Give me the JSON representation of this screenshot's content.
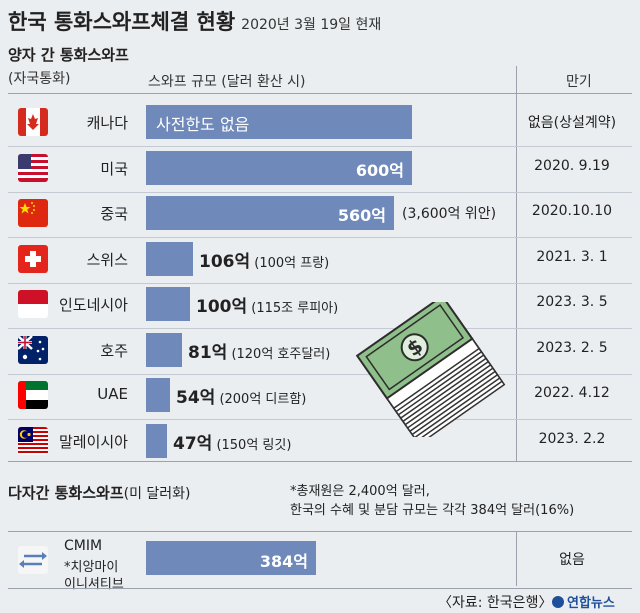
{
  "header": {
    "title": "한국 통화스와프체결 현황",
    "date": "2020년 3월 19일 현재"
  },
  "bilateral": {
    "section_title": "양자 간 통화스와프",
    "col_currency": "(자국통화)",
    "col_size": "스와프 규모 (달러 환산 시)",
    "col_expiry": "만기"
  },
  "multilateral": {
    "section_title": "다자간 통화스와프",
    "section_paren": "(미 달러화)",
    "note_line1": "*총재원은 2,400억 달러,",
    "note_line2": "한국의 수혜 및 분담 규모는 각각 384억 달러(16%)",
    "name": "CMIM",
    "sub1": "*치앙마이",
    "sub2": "이니셔티브",
    "value_label": "384억",
    "expiry": "없음"
  },
  "source": "〈자료: 한국은행〉",
  "brand": "연합뉴스",
  "chart_data": {
    "type": "bar",
    "title": "한국 통화스와프체결 현황",
    "unit": "억 달러",
    "categories": [
      "캐나다",
      "미국",
      "중국",
      "스위스",
      "인도네시아",
      "호주",
      "UAE",
      "말레이시아"
    ],
    "values": [
      null,
      600,
      560,
      106,
      100,
      81,
      54,
      47
    ],
    "value_labels": [
      "사전한도 없음",
      "600억",
      "560억",
      "106억",
      "100억",
      "81억",
      "54억",
      "47억"
    ],
    "local_currency": [
      "",
      "",
      "(3,600억 위안)",
      "(100억 프랑)",
      "(115조 루피아)",
      "(120억 호주달러)",
      "(200억 디르함)",
      "(150억 링깃)"
    ],
    "expiry": [
      "없음(상설계약)",
      "2020. 9.19",
      "2020.10.10",
      "2021. 3. 1",
      "2023. 3. 5",
      "2023. 2. 5",
      "2022. 4.12",
      "2023. 2.2"
    ],
    "flags": [
      "canada",
      "usa",
      "china",
      "switzerland",
      "indonesia",
      "australia",
      "uae",
      "malaysia"
    ],
    "extra": {
      "category": "CMIM",
      "value": 384,
      "value_label": "384억",
      "expiry": "없음"
    },
    "colors": {
      "bar": "#6f89ba",
      "background": "#ebeef1"
    }
  }
}
